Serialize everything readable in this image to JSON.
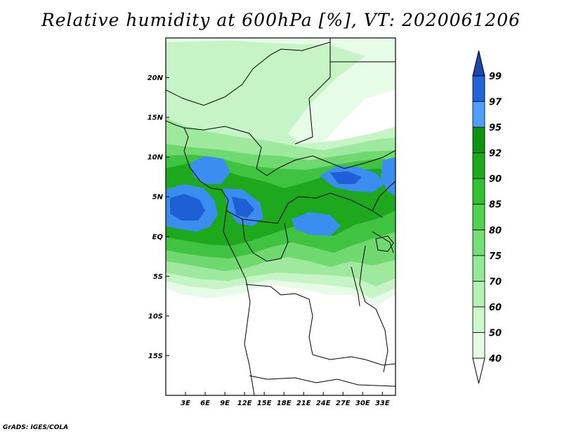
{
  "title": "Relative humidity at 600hPa [%], VT: 2020061206",
  "credit": "GrADS: IGES/COLA",
  "map": {
    "lon_range": [
      0,
      35
    ],
    "lat_range": [
      -20,
      25
    ],
    "lat_ticks": [
      {
        "value": 20,
        "label": "20N"
      },
      {
        "value": 15,
        "label": "15N"
      },
      {
        "value": 10,
        "label": "10N"
      },
      {
        "value": 5,
        "label": "5N"
      },
      {
        "value": 0,
        "label": "EQ"
      },
      {
        "value": -5,
        "label": "5S"
      },
      {
        "value": -10,
        "label": "10S"
      },
      {
        "value": -15,
        "label": "15S"
      }
    ],
    "lon_ticks": [
      {
        "value": 3,
        "label": "3E"
      },
      {
        "value": 6,
        "label": "6E"
      },
      {
        "value": 9,
        "label": "9E"
      },
      {
        "value": 12,
        "label": "12E"
      },
      {
        "value": 15,
        "label": "15E"
      },
      {
        "value": 18,
        "label": "18E"
      },
      {
        "value": 21,
        "label": "21E"
      },
      {
        "value": 24,
        "label": "24E"
      },
      {
        "value": 27,
        "label": "27E"
      },
      {
        "value": 30,
        "label": "30E"
      },
      {
        "value": 33,
        "label": "33E"
      }
    ]
  },
  "colorbar": {
    "levels": [
      "40",
      "50",
      "60",
      "70",
      "75",
      "80",
      "85",
      "90",
      "92",
      "95",
      "97",
      "99"
    ],
    "colors": [
      "#ffffff",
      "#e6fce6",
      "#cdf8cd",
      "#b4f2b4",
      "#94ea94",
      "#74e074",
      "#52d252",
      "#34c034",
      "#1eaa1e",
      "#109310",
      "#4d9eff",
      "#2265d8",
      "#1a48b0"
    ]
  },
  "layer_colors": [
    "#e6fce6",
    "#c6f4c6",
    "#9fe99f",
    "#6fd86f",
    "#40c340",
    "#1ea81e",
    "#3a8ef0",
    "#1e5fd6"
  ]
}
